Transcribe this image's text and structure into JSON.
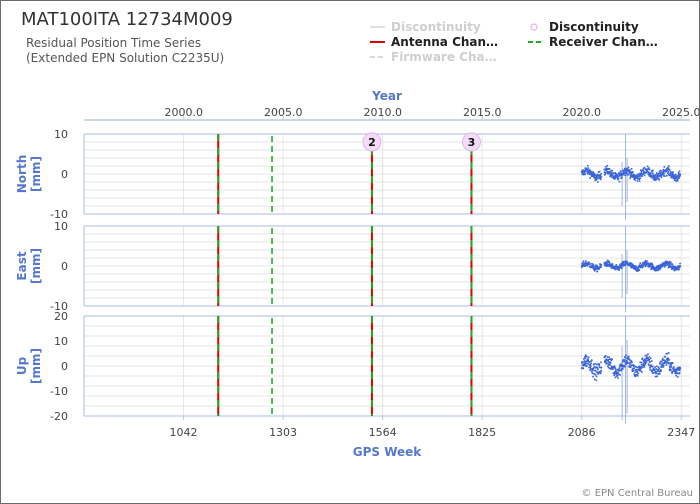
{
  "header": {
    "title": "MAT100ITA 12734M009",
    "subtitle_line1": "Residual Position Time Series",
    "subtitle_line2": "(Extended EPN Solution C2235U)"
  },
  "legend": {
    "placement": "top-right",
    "items": [
      {
        "label": "Discontinuity",
        "symbol": "line",
        "color": "#e0e0e0",
        "dashed": false,
        "muted": true
      },
      {
        "label": "Discontinuity",
        "symbol": "circle",
        "color": "#e6b3ee",
        "dashed": false,
        "muted": false
      },
      {
        "label": "Antenna Chan…",
        "symbol": "line",
        "color": "#dd0000",
        "dashed": false,
        "muted": false
      },
      {
        "label": "Receiver Chan…",
        "symbol": "line",
        "color": "#22aa22",
        "dashed": true,
        "muted": false
      },
      {
        "label": "Firmware Cha…",
        "symbol": "line",
        "color": "#d8d8d8",
        "dashed": true,
        "muted": true
      }
    ]
  },
  "footer": {
    "credit": "© EPN Central Bureau"
  },
  "chart_data": {
    "type": "scatter",
    "x_axis_bottom": {
      "label": "GPS Week",
      "range": [
        781,
        2370
      ],
      "ticks": [
        1042,
        1303,
        1564,
        1825,
        2086,
        2347
      ]
    },
    "x_axis_top": {
      "label": "Year",
      "ticks": [
        2000.0,
        2005.0,
        2010.0,
        2015.0,
        2020.0,
        2025.0
      ]
    },
    "colors": {
      "points": "#3a64d8",
      "antenna": "#dd0000",
      "receiver": "#22aa22",
      "axis_label": "#5577cc",
      "grid": "#e4e4e4"
    },
    "panels": [
      {
        "name": "North",
        "unit": "[mm]",
        "ylim": [
          -10,
          10
        ],
        "ticks": [
          10,
          0,
          -10
        ],
        "data_start": 2086,
        "data_end": 2345,
        "spread": 1.3,
        "gap_start": 2138,
        "gap_end": 2145
      },
      {
        "name": "East",
        "unit": "[mm]",
        "ylim": [
          -10,
          10
        ],
        "ticks": [
          10,
          0,
          -10
        ],
        "data_start": 2086,
        "data_end": 2345,
        "spread": 0.9,
        "gap_start": 2138,
        "gap_end": 2145
      },
      {
        "name": "Up",
        "unit": "[mm]",
        "ylim": [
          -20,
          20
        ],
        "ticks": [
          20,
          10,
          0,
          -10,
          -20
        ],
        "data_start": 2086,
        "data_end": 2345,
        "spread": 3.3,
        "gap_start": 2138,
        "gap_end": 2145
      }
    ],
    "events": [
      {
        "week": 1133,
        "types": [
          "antenna",
          "receiver"
        ]
      },
      {
        "week": 1274,
        "types": [
          "receiver"
        ],
        "dashed": true
      },
      {
        "week": 1536,
        "types": [
          "antenna",
          "receiver"
        ]
      },
      {
        "week": 1797,
        "types": [
          "antenna",
          "receiver"
        ]
      }
    ],
    "discontinuity_markers": [
      {
        "week": 1536,
        "label": "2"
      },
      {
        "week": 1797,
        "label": "3"
      }
    ],
    "outlier_bars": [
      {
        "week": 2192,
        "top": 3,
        "bottom": -8
      },
      {
        "week": 2201,
        "top": 12,
        "bottom": -18
      },
      {
        "week": 2205,
        "top": 4,
        "bottom": -7
      }
    ]
  }
}
